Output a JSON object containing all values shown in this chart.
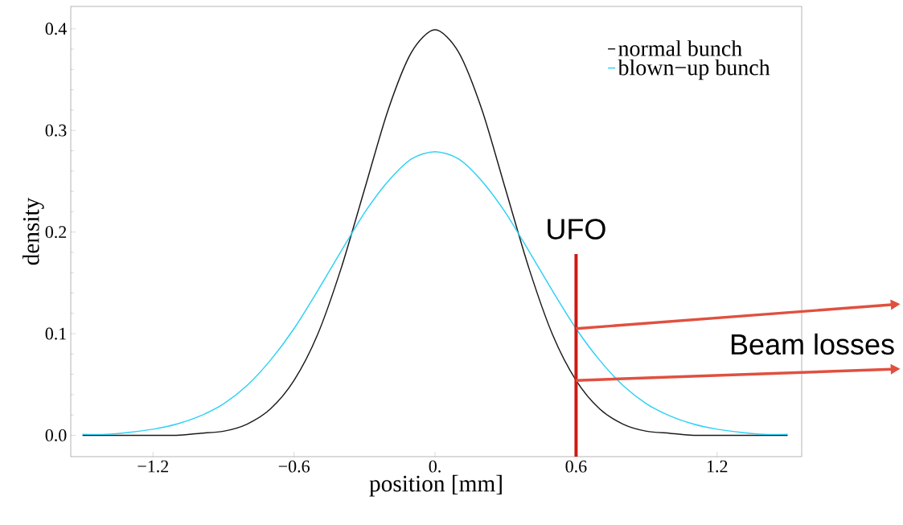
{
  "chart_data": {
    "type": "line",
    "xlabel": "position [mm]",
    "ylabel": "density",
    "x": [
      -1.5,
      -1.4,
      -1.3,
      -1.2,
      -1.1,
      -1.0,
      -0.9,
      -0.8,
      -0.7,
      -0.6,
      -0.5,
      -0.4,
      -0.3,
      -0.2,
      -0.1,
      0,
      0.1,
      0.2,
      0.3,
      0.4,
      0.5,
      0.6,
      0.7,
      0.8,
      0.9,
      1.0,
      1.1,
      1.2,
      1.3,
      1.4,
      1.5
    ],
    "series": [
      {
        "name": "normal bunch",
        "color": "#1a1a1a",
        "values": [
          0,
          0,
          0,
          0,
          0,
          0.002,
          0.004,
          0.011,
          0.026,
          0.054,
          0.099,
          0.164,
          0.242,
          0.32,
          0.377,
          0.399,
          0.377,
          0.32,
          0.242,
          0.164,
          0.099,
          0.054,
          0.026,
          0.011,
          0.004,
          0.002,
          0,
          0,
          0,
          0,
          0
        ]
      },
      {
        "name": "blown−up bunch",
        "color": "#2fd0f5",
        "values": [
          0.001,
          0.001,
          0.003,
          0.006,
          0.011,
          0.019,
          0.031,
          0.049,
          0.074,
          0.105,
          0.142,
          0.181,
          0.219,
          0.25,
          0.272,
          0.279,
          0.272,
          0.25,
          0.219,
          0.181,
          0.142,
          0.105,
          0.074,
          0.049,
          0.031,
          0.019,
          0.011,
          0.006,
          0.003,
          0.001,
          0.001
        ]
      }
    ],
    "xlim": [
      -1.55,
      1.56
    ],
    "ylim": [
      -0.021,
      0.422
    ],
    "xticks": [
      {
        "value": -1.2,
        "label": "−1.2"
      },
      {
        "value": -0.6,
        "label": "−0.6"
      },
      {
        "value": 0,
        "label": "0."
      },
      0.6,
      1.2
    ],
    "yticks": [
      {
        "value": 0,
        "label": "0.0"
      },
      0.1,
      0.2,
      0.3,
      0.4
    ],
    "ref_lines": [
      {
        "axis": "x",
        "value": 0.6,
        "label": "UFO",
        "color": "#cc1a14"
      }
    ],
    "annotations": [
      "Beam losses"
    ],
    "legend": "top right",
    "grid": false,
    "line_style": "solid",
    "marker": "none"
  }
}
